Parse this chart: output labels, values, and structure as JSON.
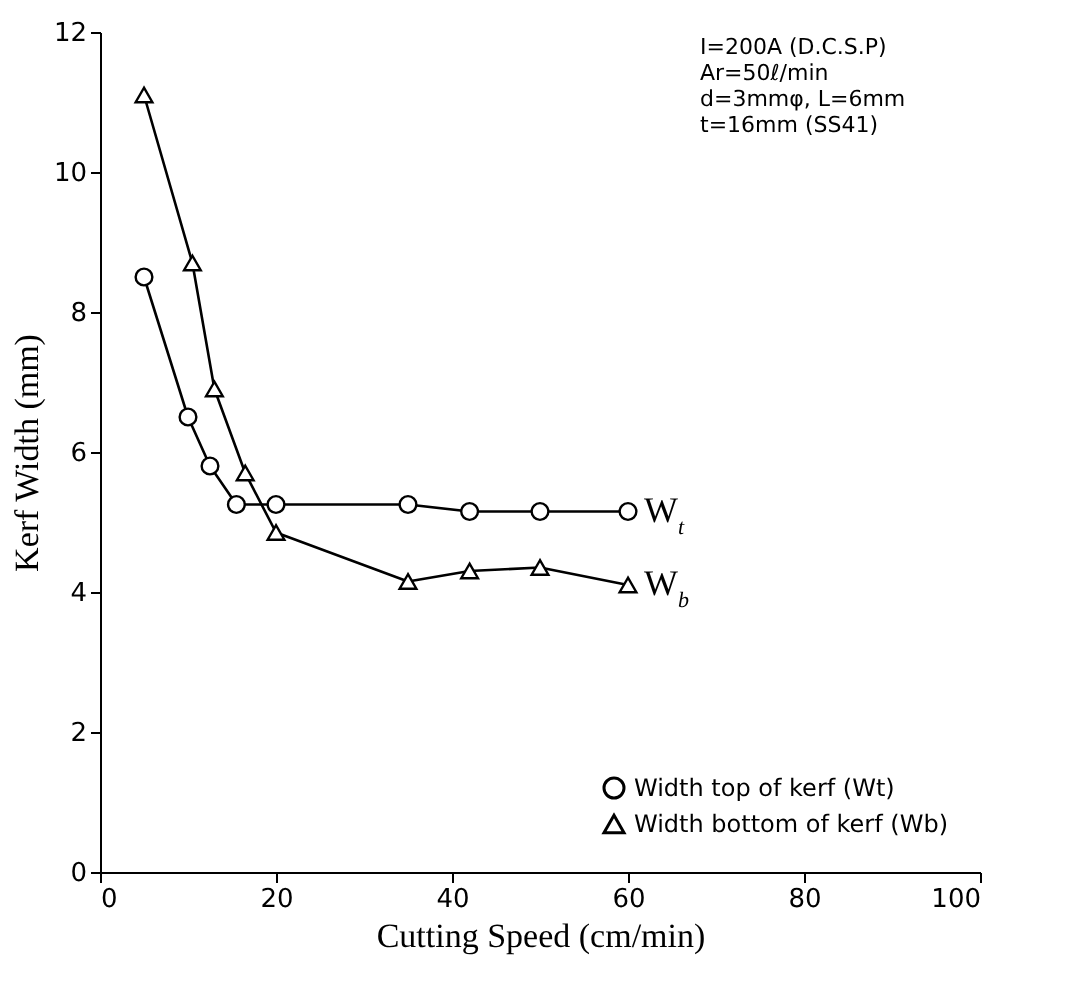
{
  "chart_data": {
    "type": "line",
    "xlabel": "Cutting Speed (cm/min)",
    "ylabel": "Kerf Width (mm)",
    "xlim": [
      0,
      100
    ],
    "xticks": [
      0,
      20,
      40,
      60,
      80,
      100
    ],
    "ylim": [
      0,
      12
    ],
    "yticks": [
      0,
      2,
      4,
      6,
      8,
      10,
      12
    ],
    "grid": false,
    "legend": "bottom right",
    "series": [
      {
        "name": "Width top of kerf (Wt)",
        "color": "#000000",
        "marker": "circle",
        "x": [
          5,
          10,
          12.5,
          15.5,
          20,
          35,
          42,
          50,
          60
        ],
        "values": [
          8.5,
          6.5,
          5.8,
          5.25,
          5.25,
          5.25,
          5.15,
          5.15,
          5.15
        ]
      },
      {
        "name": "Width bottom of kerf (Wb)",
        "color": "#000000",
        "marker": "triangle",
        "x": [
          5,
          10.5,
          13,
          16.5,
          20,
          35,
          42,
          50,
          60
        ],
        "values": [
          11.1,
          8.7,
          6.9,
          5.7,
          4.85,
          4.15,
          4.3,
          4.35,
          4.1
        ]
      }
    ],
    "annotations": [
      {
        "text": "W$_{t}$",
        "x": 60,
        "y": 5.15
      },
      {
        "text": "W$_{b}$",
        "x": 60,
        "y": 4.1
      },
      "I=200A (D.C.S.P)",
      "Ar=50ℓ/min",
      "d=3mmφ, L=6mm",
      "t=16mm (SS41)"
    ]
  }
}
